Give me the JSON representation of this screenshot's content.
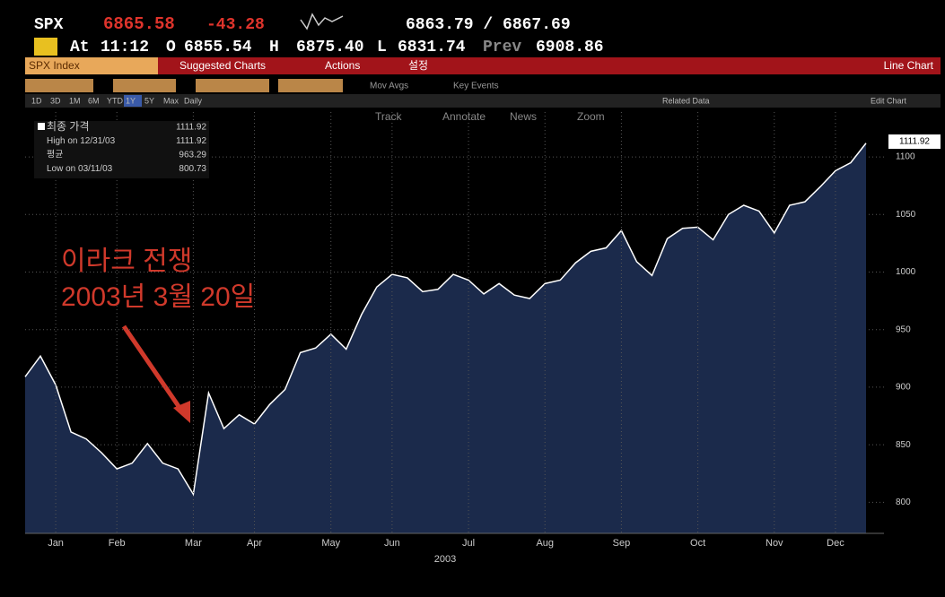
{
  "header": {
    "ticker": "SPX",
    "last": "6865.58",
    "change": "-43.28",
    "bid_ask": "6863.79 / 6867.69",
    "at_label": "At",
    "time": "11:12",
    "open_label": "O",
    "open": "6855.54",
    "high_label": "H",
    "high": "6875.40",
    "low_label": "L",
    "low": "6831.74",
    "prev_label": "Prev",
    "prev": "6908.86"
  },
  "menu": {
    "security": "SPX Index",
    "suggested": "Suggested Charts",
    "actions": "Actions",
    "settings": "설정",
    "chart_type": "Line Chart"
  },
  "toolbar": {
    "periods": [
      "1D",
      "3D",
      "1M",
      "6M",
      "YTD",
      "1Y",
      "5Y",
      "Max"
    ],
    "frequency": "Daily",
    "mov_avgs": "Mov Avgs",
    "key_events": "Key Events",
    "related": "Related Data",
    "edit": "Edit Chart",
    "tools": [
      "Track",
      "Annotate",
      "News",
      "Zoom"
    ]
  },
  "chart_data": {
    "type": "line",
    "color": "#ffffff",
    "fill": "#1b2a4b",
    "legend_items": [
      {
        "label": "최종 가격",
        "value": 1111.92
      },
      {
        "label": "High on 12/31/03",
        "value": 1111.92
      },
      {
        "label": "평균",
        "value": 963.29
      },
      {
        "label": "Low on 03/11/03",
        "value": 800.73
      }
    ],
    "annotation": [
      "이라크 전쟁",
      "2003년 3월 20일"
    ],
    "xlabel": "2003",
    "categories": [
      null,
      null,
      "Jan",
      null,
      null,
      null,
      "Feb",
      null,
      null,
      null,
      null,
      "Mar",
      null,
      null,
      null,
      "Apr",
      null,
      null,
      null,
      null,
      "May",
      null,
      null,
      null,
      "Jun",
      null,
      null,
      null,
      null,
      "Jul",
      null,
      null,
      null,
      null,
      "Aug",
      null,
      null,
      null,
      null,
      "Sep",
      null,
      null,
      null,
      null,
      "Oct",
      null,
      null,
      null,
      null,
      "Nov",
      null,
      null,
      null,
      "Dec",
      null,
      null
    ],
    "values": [
      909,
      927,
      902,
      861,
      855,
      843,
      829,
      834,
      851,
      834,
      829,
      807,
      895,
      864,
      876,
      868,
      885,
      898,
      930,
      934,
      946,
      933,
      963,
      987,
      998,
      995,
      983,
      985,
      998,
      993,
      981,
      990,
      980,
      977,
      990,
      993,
      1008,
      1018,
      1021,
      1036,
      1009,
      997,
      1029,
      1038,
      1039,
      1028,
      1050,
      1058,
      1053,
      1034,
      1058,
      1061,
      1074,
      1088,
      1095,
      1111.92
    ],
    "ylim": [
      773,
      1139
    ],
    "yticks": [
      800,
      850,
      900,
      950,
      1000,
      1050,
      1100
    ],
    "grid": true
  }
}
